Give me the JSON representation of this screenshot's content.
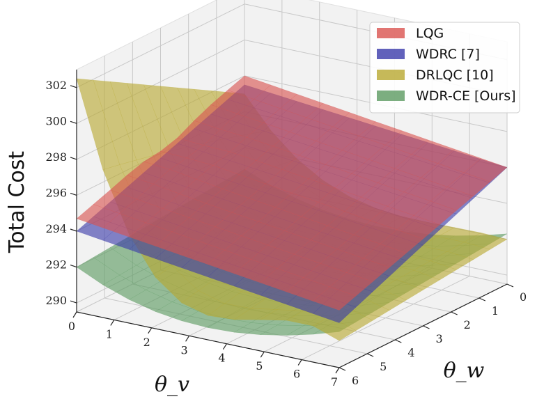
{
  "chart_data": {
    "type": "surface3d",
    "zlabel": "Total Cost",
    "xlabel": "θ_v",
    "ylabel": "θ_w",
    "x_ticks": [
      "0",
      "1",
      "2",
      "3",
      "4",
      "5",
      "6",
      "7"
    ],
    "y_ticks": [
      "0",
      "1",
      "2",
      "3",
      "4",
      "5",
      "6"
    ],
    "z_ticks": [
      "290",
      "292",
      "294",
      "296",
      "298",
      "300",
      "302"
    ],
    "xlim": [
      0,
      7
    ],
    "ylim": [
      0,
      6
    ],
    "zlim": [
      289.5,
      303
    ],
    "grid": true,
    "legend_position": "top-right",
    "series": [
      {
        "name": "LQG",
        "color": "#d9534f",
        "corners": {
          "x0_y0": 298.0,
          "x7_y0": 296.0,
          "x0_y6": 294.7,
          "x7_y6": 292.7
        },
        "peak": {
          "x": 0.3,
          "y": 3.0,
          "z": 296.0
        }
      },
      {
        "name": "WDRC [7]",
        "color": "#3a3aaa",
        "corners": {
          "x0_y0": 297.5,
          "x7_y0": 296.0,
          "x0_y6": 294.0,
          "x7_y6": 292.0
        }
      },
      {
        "name": "DRLQC [10]",
        "color": "#b8a830",
        "corners": {
          "x0_y0": 297.0,
          "x7_y0": 292.0,
          "x0_y6": 302.5,
          "x7_y6": 291.0
        },
        "valley_min": 290.2
      },
      {
        "name": "WDR-CE [Ours]",
        "color": "#5b9a60",
        "corners": {
          "x0_y0": 292.8,
          "x7_y0": 292.3,
          "x0_y6": 292.0,
          "x7_y6": 291.5
        },
        "valley_min": 290.0
      }
    ]
  }
}
